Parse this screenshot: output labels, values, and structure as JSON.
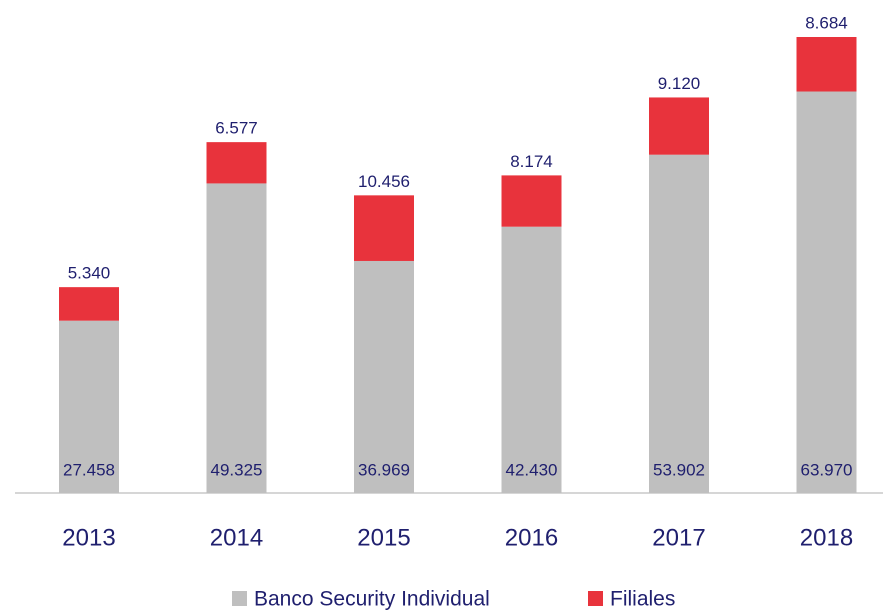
{
  "chart_data": {
    "type": "stacked_bar",
    "categories": [
      "2013",
      "2014",
      "2015",
      "2016",
      "2017",
      "2018"
    ],
    "series": [
      {
        "name": "Banco Security Individual",
        "color": "#bfbfbf",
        "values": [
          27458,
          49325,
          36969,
          42430,
          53902,
          63970
        ],
        "value_labels": [
          "27.458",
          "49.325",
          "36.969",
          "42.430",
          "53.902",
          "63.970"
        ]
      },
      {
        "name": "Filiales",
        "color": "#e8333c",
        "values": [
          5340,
          6577,
          10456,
          8174,
          9120,
          8684
        ],
        "value_labels": [
          "5.340",
          "6.577",
          "10.456",
          "8.174",
          "9.120",
          "8.684"
        ]
      }
    ],
    "legend": "bottom"
  }
}
